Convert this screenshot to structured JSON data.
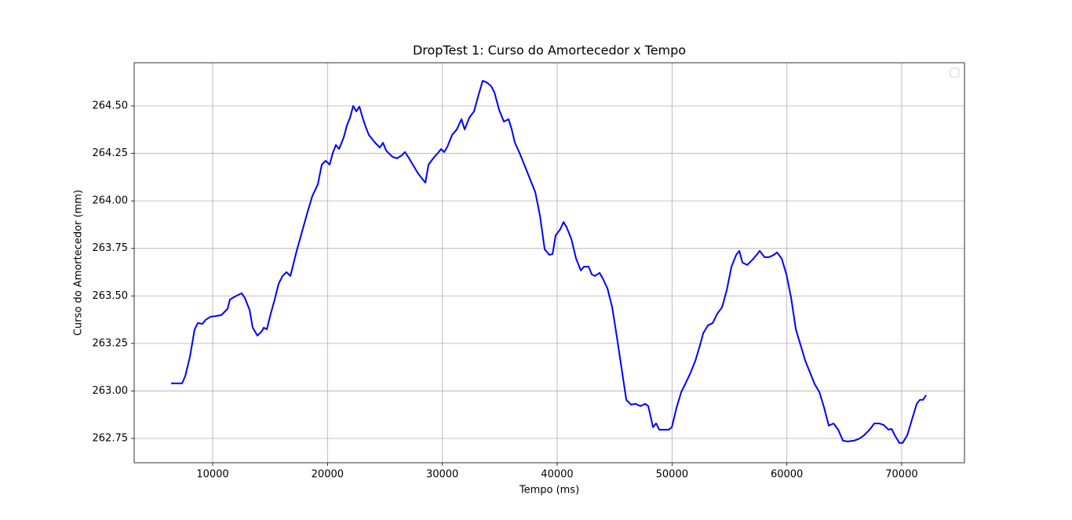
{
  "chart_data": {
    "type": "line",
    "title": "DropTest 1: Curso do Amortecedor x Tempo",
    "xlabel": "Tempo (ms)",
    "ylabel": "Curso do Amortecedor (mm)",
    "color": "#0000ff",
    "grid": true,
    "legend": "upper right",
    "xlim": [
      3165,
      75470
    ],
    "ylim": [
      262.622,
      264.727
    ],
    "xticks": [
      10000,
      20000,
      30000,
      40000,
      50000,
      60000,
      70000
    ],
    "yticks": [
      {
        "value": 262.75,
        "label": "262.75"
      },
      {
        "value": 263,
        "label": "263.00"
      },
      {
        "value": 263.25,
        "label": "263.25"
      },
      {
        "value": 263.5,
        "label": "263.50"
      },
      {
        "value": 263.75,
        "label": "263.75"
      },
      {
        "value": 264,
        "label": "264.00"
      },
      {
        "value": 264.25,
        "label": "264.25"
      },
      {
        "value": 264.5,
        "label": "264.50"
      }
    ],
    "x": [
      6377,
      7334,
      7608,
      8018,
      8428,
      8701,
      9111,
      9385,
      9795,
      10273,
      10752,
      11299,
      11504,
      11983,
      12529,
      12802,
      13212,
      13486,
      13896,
      14306,
      14443,
      14716,
      15058,
      15400,
      15742,
      16084,
      16425,
      16767,
      17314,
      17792,
      18270,
      18680,
      19159,
      19501,
      19842,
      20184,
      20458,
      20731,
      21004,
      21414,
      21688,
      21961,
      22235,
      22508,
      22781,
      23055,
      23328,
      23602,
      24148,
      24559,
      24832,
      25105,
      25379,
      25652,
      26062,
      26472,
      26746,
      27019,
      27429,
      27839,
      28249,
      28523,
      28796,
      29206,
      29616,
      29890,
      30163,
      30437,
      30847,
      31257,
      31667,
      31940,
      32350,
      32761,
      33171,
      33512,
      33854,
      34264,
      34538,
      34948,
      35358,
      35768,
      36041,
      36315,
      36725,
      37135,
      37682,
      38092,
      38502,
      38912,
      39322,
      39596,
      39869,
      40279,
      40552,
      40826,
      41236,
      41646,
      42056,
      42330,
      42740,
      43013,
      43286,
      43697,
      43970,
      44380,
      44790,
      45200,
      45610,
      46020,
      46431,
      46841,
      47251,
      47661,
      47934,
      48344,
      48618,
      48891,
      49301,
      49711,
      49985,
      50395,
      50805,
      51215,
      51625,
      52035,
      52445,
      52719,
      53129,
      53539,
      53949,
      54359,
      54769,
      55179,
      55589,
      55863,
      56136,
      56546,
      57093,
      57367,
      57640,
      58050,
      58460,
      58870,
      59144,
      59554,
      59964,
      60374,
      60784,
      61194,
      61604,
      62014,
      62424,
      62834,
      63245,
      63655,
      64065,
      64475,
      64885,
      65295,
      65842,
      66252,
      66662,
      67209,
      67619,
      68029,
      68439,
      68849,
      69122,
      69396,
      69806,
      70079,
      70489,
      70900,
      71310,
      71583,
      71856,
      72130
    ],
    "values": [
      263.04,
      263.04,
      263.077,
      263.18,
      263.324,
      263.357,
      263.353,
      263.374,
      263.39,
      263.394,
      263.399,
      263.432,
      263.481,
      263.498,
      263.514,
      263.489,
      263.427,
      263.333,
      263.291,
      263.316,
      263.333,
      263.324,
      263.407,
      263.481,
      263.564,
      263.605,
      263.625,
      263.605,
      263.737,
      263.84,
      263.943,
      264.026,
      264.087,
      264.191,
      264.211,
      264.191,
      264.252,
      264.294,
      264.273,
      264.335,
      264.397,
      264.438,
      264.5,
      264.471,
      264.496,
      264.438,
      264.389,
      264.347,
      264.306,
      264.281,
      264.306,
      264.265,
      264.248,
      264.232,
      264.224,
      264.24,
      264.257,
      264.232,
      264.191,
      264.149,
      264.116,
      264.096,
      264.191,
      264.224,
      264.252,
      264.273,
      264.257,
      264.285,
      264.347,
      264.376,
      264.43,
      264.376,
      264.438,
      264.471,
      264.562,
      264.632,
      264.624,
      264.603,
      264.57,
      264.479,
      264.417,
      264.43,
      264.376,
      264.306,
      264.252,
      264.191,
      264.108,
      264.046,
      263.922,
      263.745,
      263.716,
      263.72,
      263.819,
      263.852,
      263.889,
      263.861,
      263.799,
      263.696,
      263.634,
      263.654,
      263.654,
      263.613,
      263.605,
      263.621,
      263.592,
      263.539,
      263.44,
      263.283,
      263.118,
      262.953,
      262.928,
      262.932,
      262.92,
      262.932,
      262.92,
      262.809,
      262.829,
      262.796,
      262.796,
      262.796,
      262.809,
      262.912,
      262.994,
      263.044,
      263.097,
      263.159,
      263.242,
      263.304,
      263.345,
      263.357,
      263.407,
      263.44,
      263.531,
      263.654,
      263.716,
      263.737,
      263.675,
      263.663,
      263.696,
      263.716,
      263.737,
      263.704,
      263.704,
      263.716,
      263.729,
      263.696,
      263.613,
      263.489,
      263.324,
      263.242,
      263.159,
      263.097,
      263.036,
      262.994,
      262.912,
      262.817,
      262.829,
      262.796,
      262.738,
      262.734,
      262.738,
      262.747,
      262.763,
      262.796,
      262.829,
      262.829,
      262.821,
      262.796,
      262.8,
      262.767,
      262.726,
      262.726,
      262.767,
      262.85,
      262.932,
      262.953,
      262.953,
      262.978
    ]
  }
}
